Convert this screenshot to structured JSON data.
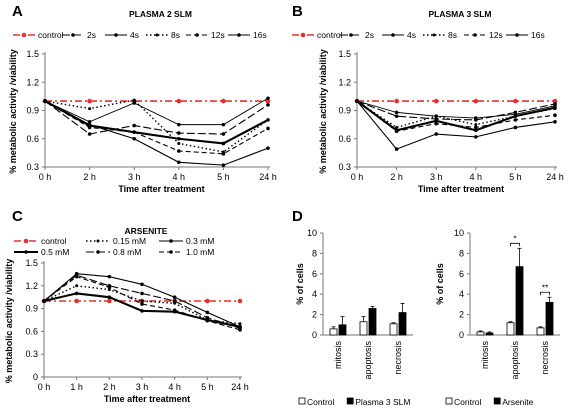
{
  "figure": {
    "panel_letters": [
      "A",
      "B",
      "C",
      "D"
    ]
  },
  "colors": {
    "control": "#e8302a",
    "series": "#000000",
    "bar_control": "#ffffff",
    "bar_treated": "#000000"
  },
  "chart_data": [
    {
      "id": "A",
      "type": "line",
      "title": "PLASMA 2 SLM",
      "xlabel": "Time after treatment",
      "ylabel": "% metabolic activity /viability",
      "categories": [
        "0 h",
        "2 h",
        "3 h",
        "4 h",
        "5 h",
        "24 h"
      ],
      "ylim": [
        0.3,
        1.5
      ],
      "yticks": [
        "0.3",
        "0.6",
        "0.9",
        "1.2",
        "1.5"
      ],
      "legend_position": "top",
      "series": [
        {
          "name": "control",
          "style": "control",
          "values": [
            1.0,
            1.0,
            1.0,
            1.0,
            1.0,
            1.0
          ]
        },
        {
          "name": "2s",
          "style": "longdash",
          "values": [
            1.0,
            0.65,
            0.74,
            0.66,
            0.65,
            0.96
          ]
        },
        {
          "name": "4s",
          "style": "solid-thin",
          "values": [
            1.0,
            0.78,
            0.98,
            0.75,
            0.75,
            1.03
          ]
        },
        {
          "name": "8s",
          "style": "dotted",
          "values": [
            1.0,
            0.92,
            1.01,
            0.55,
            0.46,
            0.8
          ]
        },
        {
          "name": "12s",
          "style": "dash",
          "values": [
            1.0,
            0.72,
            0.67,
            0.47,
            0.44,
            0.71
          ]
        },
        {
          "name": "16s",
          "style": "solid",
          "values": [
            1.0,
            0.75,
            0.6,
            0.35,
            0.32,
            0.5
          ]
        },
        {
          "name": "",
          "style": "solid-bold",
          "values": [
            1.0,
            0.74,
            0.67,
            0.6,
            0.55,
            0.8
          ]
        }
      ]
    },
    {
      "id": "B",
      "type": "line",
      "title": "PLASMA 3 SLM",
      "xlabel": "Time after treatment",
      "ylabel": "% metabolic activity /viability",
      "categories": [
        "0 h",
        "2 h",
        "3 h",
        "4 h",
        "5 h",
        "24 h"
      ],
      "ylim": [
        0.3,
        1.5
      ],
      "yticks": [
        "0.3",
        "0.6",
        "0.9",
        "1.2",
        "1.5"
      ],
      "legend_position": "top",
      "series": [
        {
          "name": "control",
          "style": "control",
          "values": [
            1.0,
            1.0,
            1.0,
            1.0,
            1.0,
            1.0
          ]
        },
        {
          "name": "2s",
          "style": "longdash",
          "values": [
            1.0,
            0.84,
            0.81,
            0.8,
            0.88,
            0.97
          ]
        },
        {
          "name": "4s",
          "style": "solid-thin",
          "values": [
            1.0,
            0.88,
            0.84,
            0.82,
            0.86,
            0.95
          ]
        },
        {
          "name": "8s",
          "style": "dotted",
          "values": [
            1.0,
            0.72,
            0.84,
            0.75,
            0.84,
            0.92
          ]
        },
        {
          "name": "12s",
          "style": "dash",
          "values": [
            1.0,
            0.68,
            0.76,
            0.72,
            0.8,
            0.85
          ]
        },
        {
          "name": "16s",
          "style": "solid",
          "values": [
            1.0,
            0.49,
            0.65,
            0.62,
            0.72,
            0.78
          ]
        },
        {
          "name": "",
          "style": "solid-bold",
          "values": [
            1.0,
            0.69,
            0.79,
            0.69,
            0.84,
            0.93
          ]
        }
      ]
    },
    {
      "id": "C",
      "type": "line",
      "title": "ARSENITE",
      "xlabel": "Time after treatment",
      "ylabel": "% metabolic activity /viability",
      "categories": [
        "0 h",
        "1 h",
        "2 h",
        "3 h",
        "4 h",
        "5 h",
        "24 h"
      ],
      "ylim": [
        0,
        1.5
      ],
      "yticks": [
        "0",
        "0.3",
        "0.6",
        "0.9",
        "1.2",
        "1.5"
      ],
      "legend_position": "top",
      "series": [
        {
          "name": "control",
          "style": "control",
          "values": [
            1.0,
            1.0,
            1.0,
            1.0,
            1.0,
            1.0,
            1.0
          ]
        },
        {
          "name": "0.15 mM",
          "style": "dotted",
          "values": [
            1.0,
            1.2,
            1.15,
            1.0,
            0.97,
            0.75,
            0.7
          ]
        },
        {
          "name": "0.3 mM",
          "style": "solid",
          "values": [
            1.0,
            1.36,
            1.32,
            1.22,
            1.05,
            0.85,
            0.66
          ]
        },
        {
          "name": "0.5 mM",
          "style": "solid-bold",
          "values": [
            1.0,
            1.1,
            1.05,
            0.87,
            0.86,
            0.75,
            0.66
          ]
        },
        {
          "name": "0.8 mM",
          "style": "longdash",
          "values": [
            1.0,
            1.34,
            1.2,
            1.1,
            1.0,
            0.78,
            0.64
          ]
        },
        {
          "name": "1.0 mM",
          "style": "dash",
          "values": [
            1.0,
            1.32,
            1.18,
            0.96,
            0.88,
            0.74,
            0.62
          ]
        }
      ]
    },
    {
      "id": "D1",
      "type": "bar",
      "ylabel": "% of cells",
      "categories": [
        "mitosis",
        "apoptosis",
        "necrosis"
      ],
      "ylim": [
        0,
        10
      ],
      "yticks": [
        "0",
        "2",
        "4",
        "6",
        "8",
        "10"
      ],
      "legend_position": "bottom",
      "series": [
        {
          "name": "Control",
          "fill": "white",
          "values": [
            0.6,
            1.3,
            1.1
          ],
          "errors": [
            0.2,
            0.5,
            0.1
          ]
        },
        {
          "name": "Plasma 3 SLM",
          "fill": "black",
          "values": [
            1.0,
            2.6,
            2.2
          ],
          "errors": [
            0.8,
            0.2,
            0.9
          ]
        }
      ],
      "significance": []
    },
    {
      "id": "D2",
      "type": "bar",
      "ylabel": "% of cells",
      "categories": [
        "mitosis",
        "apoptosis",
        "necrosis"
      ],
      "ylim": [
        0,
        10
      ],
      "yticks": [
        "0",
        "2",
        "4",
        "6",
        "8",
        "10"
      ],
      "legend_position": "bottom",
      "series": [
        {
          "name": "Control",
          "fill": "white",
          "values": [
            0.3,
            1.2,
            0.7
          ],
          "errors": [
            0.1,
            0.1,
            0.1
          ]
        },
        {
          "name": "Arsenite",
          "fill": "black",
          "values": [
            0.2,
            6.7,
            3.2
          ],
          "errors": [
            0.1,
            1.8,
            0.5
          ]
        }
      ],
      "significance": [
        {
          "category": "apoptosis",
          "label": "*"
        },
        {
          "category": "necrosis",
          "label": "**"
        }
      ]
    }
  ]
}
